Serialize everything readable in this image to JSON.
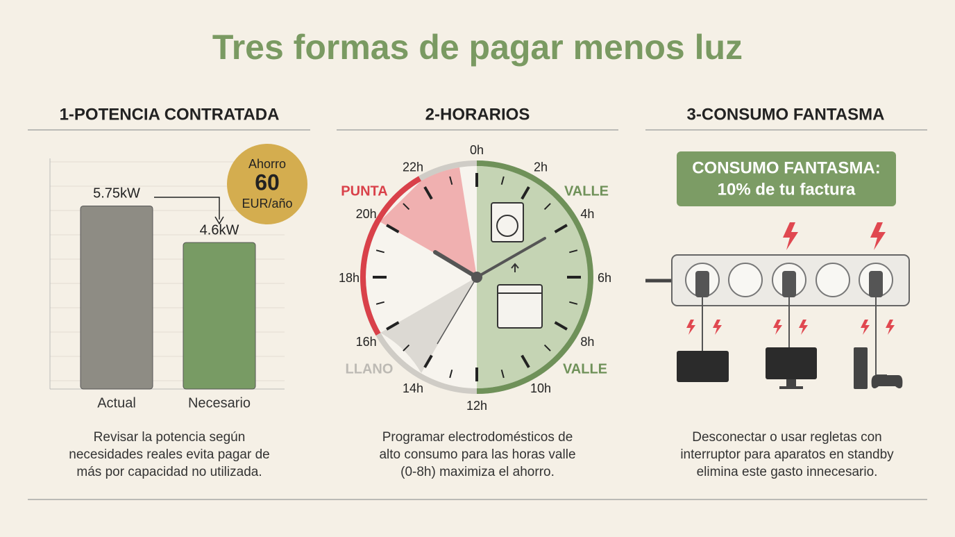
{
  "title": "Tres formas de pagar menos luz",
  "sections": [
    {
      "heading": "1-POTENCIA CONTRATADA",
      "description": [
        "Revisar la potencia según",
        "necesidades reales evita pagar de",
        "más por capacidad no utilizada."
      ]
    },
    {
      "heading": "2-HORARIOS",
      "description": [
        "Programar electrodomésticos de",
        "alto consumo para las horas valle",
        "(0-8h) maximiza el ahorro."
      ]
    },
    {
      "heading": "3-CONSUMO FANTASMA",
      "description": [
        "Desconectar o usar regletas con",
        "interruptor para aparatos en standby",
        "elimina este gasto innecesario."
      ]
    }
  ],
  "chart_data": {
    "type": "bar",
    "categories": [
      "Actual",
      "Necesario"
    ],
    "values": [
      5.75,
      4.6
    ],
    "value_labels": [
      "5.75kW",
      "4.6kW"
    ],
    "colors": [
      "#8e8c84",
      "#789b64"
    ],
    "ylim": [
      0,
      7.2
    ]
  },
  "savings": {
    "label": "Ahorro",
    "amount": "60",
    "unit": "EUR/año"
  },
  "clock": {
    "hours": [
      "0h",
      "2h",
      "4h",
      "6h",
      "8h",
      "10h",
      "12h",
      "14h",
      "16h",
      "18h",
      "20h",
      "22h"
    ],
    "periods": {
      "punta": "PUNTA",
      "valle_top": "VALLE",
      "valle_bottom": "VALLE",
      "llano": "LLANO"
    }
  },
  "phantom": {
    "line1": "CONSUMO FANTASMA:",
    "line2": "10% de tu factura"
  }
}
